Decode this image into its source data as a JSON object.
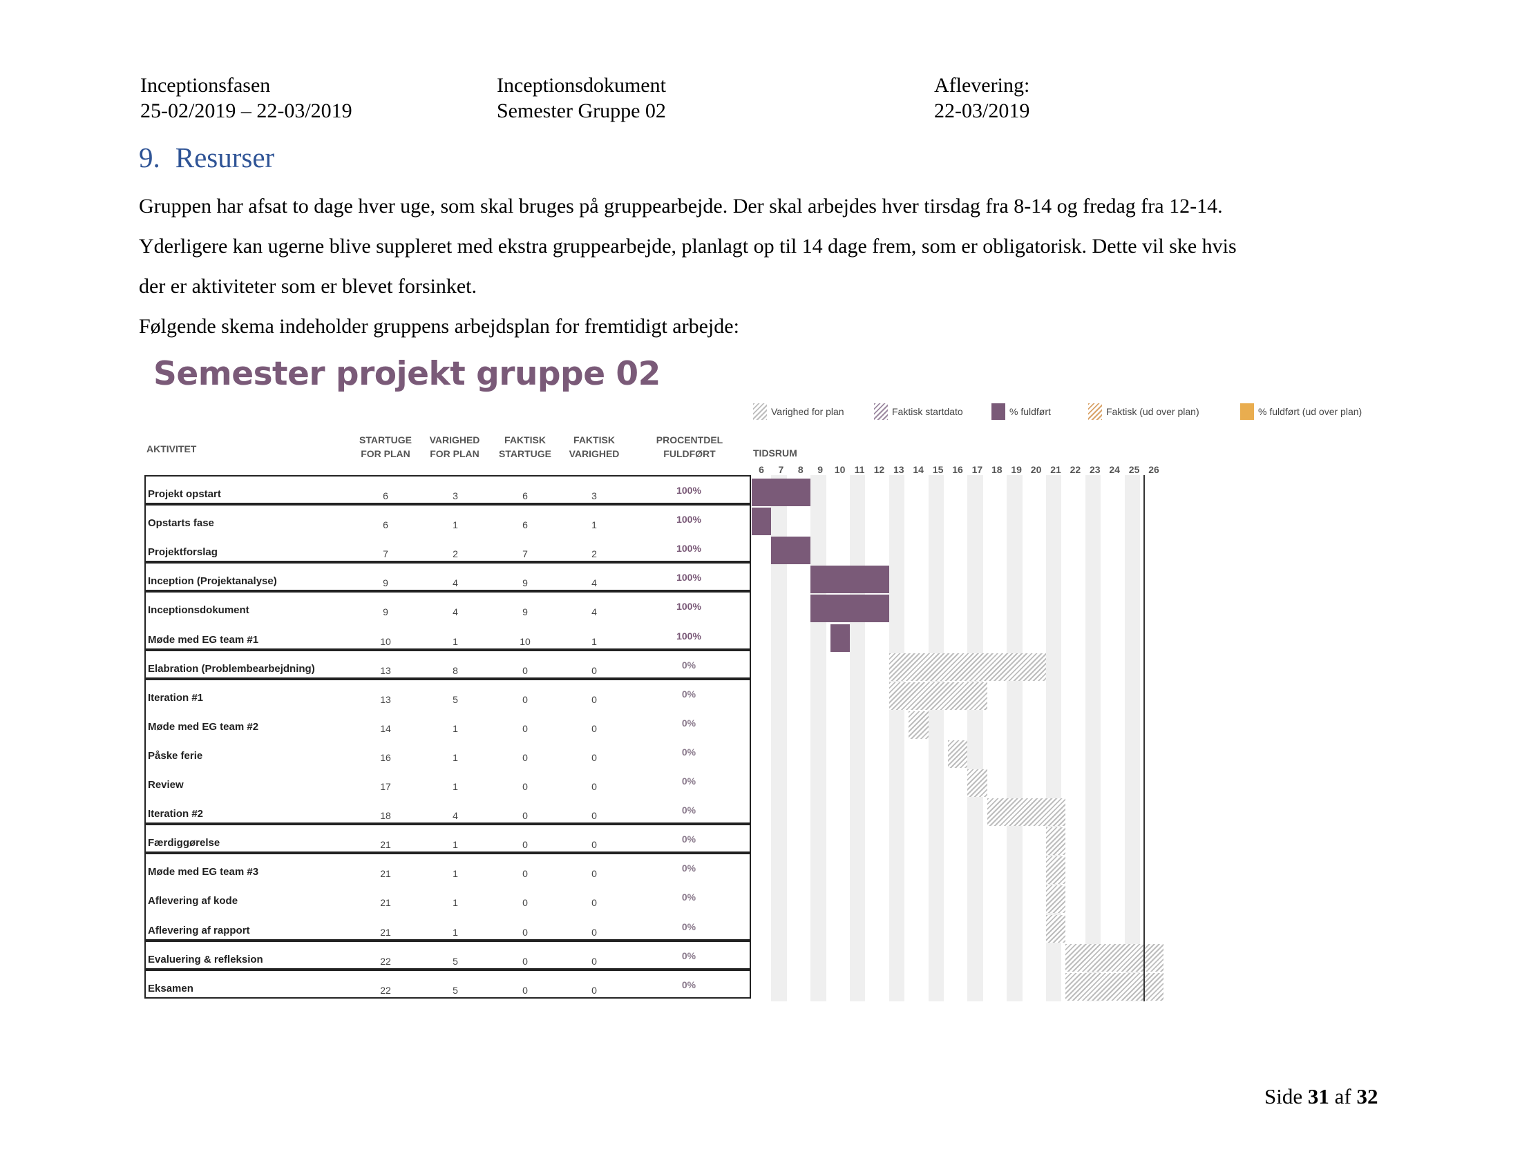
{
  "header": {
    "col1": [
      "Inceptionsfasen",
      "25-02/2019 – 22-03/2019"
    ],
    "col2": [
      "Inceptionsdokument",
      "Semester Gruppe 02"
    ],
    "col3": [
      "Aflevering:",
      "22-03/2019"
    ]
  },
  "section": {
    "number": "9.",
    "title": "Resurser"
  },
  "paragraphs": [
    "Gruppen har afsat to dage hver uge, som skal bruges på gruppearbejde. Der skal arbejdes hver tirsdag fra 8-14 og fredag fra 12-14.",
    "Yderligere kan ugerne blive suppleret med ekstra gruppearbejde, planlagt op til 14 dage frem, som er obligatorisk. Dette vil ske hvis",
    "der er aktiviteter som er blevet forsinket.",
    "Følgende skema indeholder gruppens arbejdsplan for fremtidigt arbejde:"
  ],
  "gantt": {
    "title": "Semester projekt gruppe 02",
    "legend": [
      {
        "label": "Varighed for plan",
        "icon": "hatch-grey"
      },
      {
        "label": "Faktisk startdato",
        "icon": "hatch-purple"
      },
      {
        "label": "% fuldført",
        "icon": "solid-purple"
      },
      {
        "label": "Faktisk (ud over plan)",
        "icon": "hatch-orange"
      },
      {
        "label": "% fuldført (ud over plan)",
        "icon": "solid-orange"
      }
    ],
    "columns": {
      "activity": "AKTIVITET",
      "plan_start": [
        "STARTUGE",
        "FOR PLAN"
      ],
      "plan_duration": [
        "VARIGHED",
        "FOR PLAN"
      ],
      "actual_start": [
        "FAKTISK",
        "STARTUGE"
      ],
      "actual_duration": [
        "FAKTISK",
        "VARIGHED"
      ],
      "percent": [
        "PROCENTDEL",
        "FULDFØRT"
      ],
      "timeline": "TIDSRUM"
    },
    "weeks": [
      6,
      7,
      8,
      9,
      10,
      11,
      12,
      13,
      14,
      15,
      16,
      17,
      18,
      19,
      20,
      21,
      22,
      23,
      24,
      25,
      26
    ],
    "tasks": [
      {
        "name": "Projekt opstart",
        "plan_start": "6",
        "plan_duration": "3",
        "actual_start": "6",
        "actual_duration": "3",
        "percent": "100%"
      },
      {
        "name": "Opstarts fase",
        "plan_start": "6",
        "plan_duration": "1",
        "actual_start": "6",
        "actual_duration": "1",
        "percent": "100%"
      },
      {
        "name": "Projektforslag",
        "plan_start": "7",
        "plan_duration": "2",
        "actual_start": "7",
        "actual_duration": "2",
        "percent": "100%"
      },
      {
        "name": "Inception (Projektanalyse)",
        "plan_start": "9",
        "plan_duration": "4",
        "actual_start": "9",
        "actual_duration": "4",
        "percent": "100%"
      },
      {
        "name": "Inceptionsdokument",
        "plan_start": "9",
        "plan_duration": "4",
        "actual_start": "9",
        "actual_duration": "4",
        "percent": "100%"
      },
      {
        "name": "Møde med EG team #1",
        "plan_start": "10",
        "plan_duration": "1",
        "actual_start": "10",
        "actual_duration": "1",
        "percent": "100%"
      },
      {
        "name": "Elabration (Problembearbejdning)",
        "plan_start": "13",
        "plan_duration": "8",
        "actual_start": "0",
        "actual_duration": "0",
        "percent": "0%"
      },
      {
        "name": "Iteration #1",
        "plan_start": "13",
        "plan_duration": "5",
        "actual_start": "0",
        "actual_duration": "0",
        "percent": "0%"
      },
      {
        "name": "Møde med EG team #2",
        "plan_start": "14",
        "plan_duration": "1",
        "actual_start": "0",
        "actual_duration": "0",
        "percent": "0%"
      },
      {
        "name": "Påske ferie",
        "plan_start": "16",
        "plan_duration": "1",
        "actual_start": "0",
        "actual_duration": "0",
        "percent": "0%"
      },
      {
        "name": "Review",
        "plan_start": "17",
        "plan_duration": "1",
        "actual_start": "0",
        "actual_duration": "0",
        "percent": "0%"
      },
      {
        "name": "Iteration #2",
        "plan_start": "18",
        "plan_duration": "4",
        "actual_start": "0",
        "actual_duration": "0",
        "percent": "0%"
      },
      {
        "name": "Færdiggørelse",
        "plan_start": "21",
        "plan_duration": "1",
        "actual_start": "0",
        "actual_duration": "0",
        "percent": "0%"
      },
      {
        "name": "Møde med EG team #3",
        "plan_start": "21",
        "plan_duration": "1",
        "actual_start": "0",
        "actual_duration": "0",
        "percent": "0%"
      },
      {
        "name": "Aflevering af kode",
        "plan_start": "21",
        "plan_duration": "1",
        "actual_start": "0",
        "actual_duration": "0",
        "percent": "0%"
      },
      {
        "name": "Aflevering af rapport",
        "plan_start": "21",
        "plan_duration": "1",
        "actual_start": "0",
        "actual_duration": "0",
        "percent": "0%"
      },
      {
        "name": "Evaluering & refleksion",
        "plan_start": "22",
        "plan_duration": "5",
        "actual_start": "0",
        "actual_duration": "0",
        "percent": "0%"
      },
      {
        "name": "Eksamen",
        "plan_start": "22",
        "plan_duration": "5",
        "actual_start": "0",
        "actual_duration": "0",
        "percent": "0%"
      }
    ]
  },
  "footer": {
    "prefix": "Side",
    "page": "31",
    "middle": "af",
    "total": "32"
  }
}
